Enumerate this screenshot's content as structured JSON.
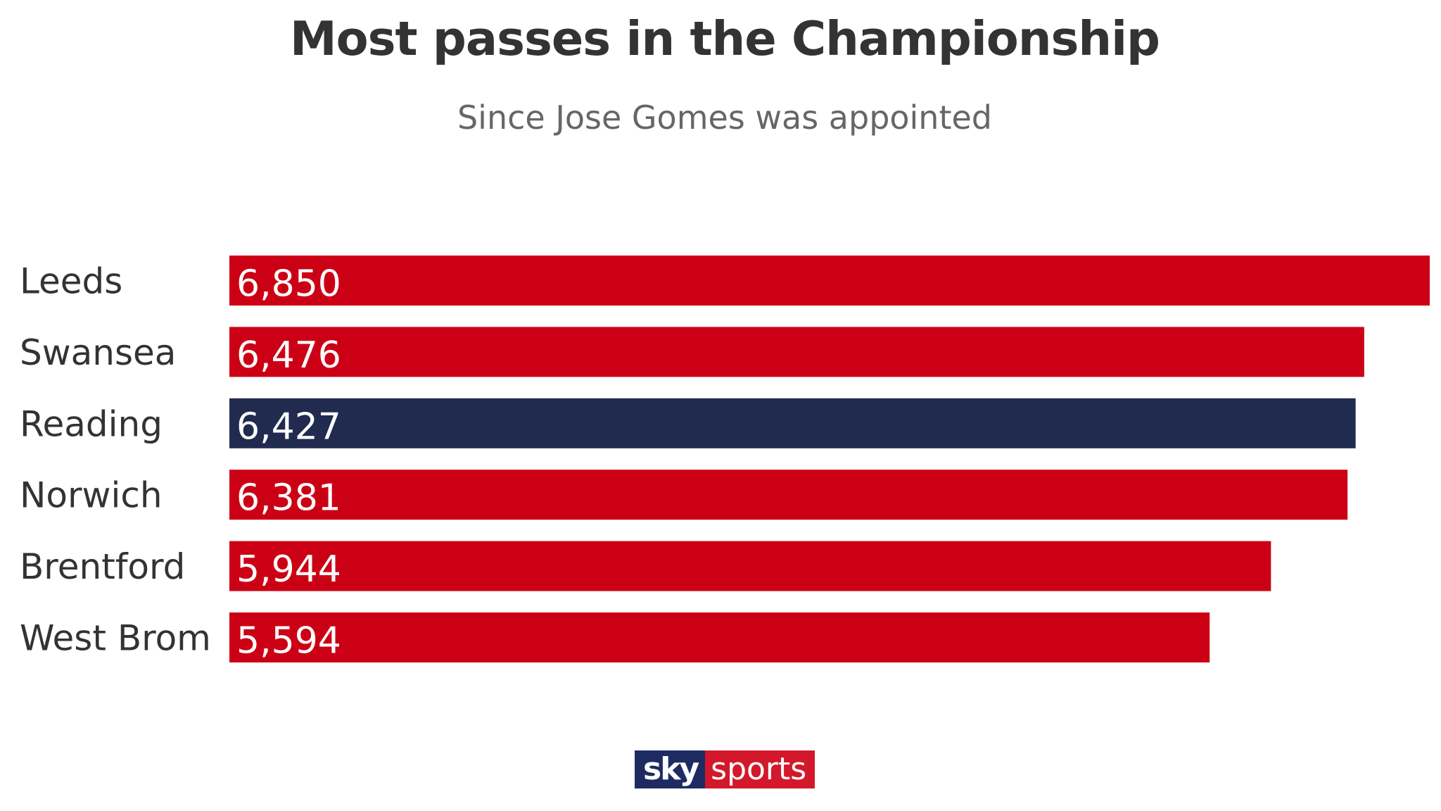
{
  "title": "Most passes in the Championship",
  "subtitle": "Since Jose Gomes was appointed",
  "logo": {
    "sky": "sky",
    "sports": "sports"
  },
  "colors": {
    "bar_default": "#cc0015",
    "bar_highlight": "#212a4f",
    "label_text": "#333333",
    "value_text": "#ffffff"
  },
  "chart_data": {
    "type": "bar",
    "orientation": "horizontal",
    "title": "Most passes in the Championship",
    "subtitle": "Since Jose Gomes was appointed",
    "categories": [
      "Leeds",
      "Swansea",
      "Reading",
      "Norwich",
      "Brentford",
      "West Brom"
    ],
    "values": [
      6850,
      6476,
      6427,
      6381,
      5944,
      5594
    ],
    "value_labels": [
      "6,850",
      "6,476",
      "6,427",
      "6,381",
      "5,944",
      "5,594"
    ],
    "highlight": "Reading",
    "xlim": [
      0,
      6850
    ],
    "grid": false,
    "legend": "none"
  }
}
